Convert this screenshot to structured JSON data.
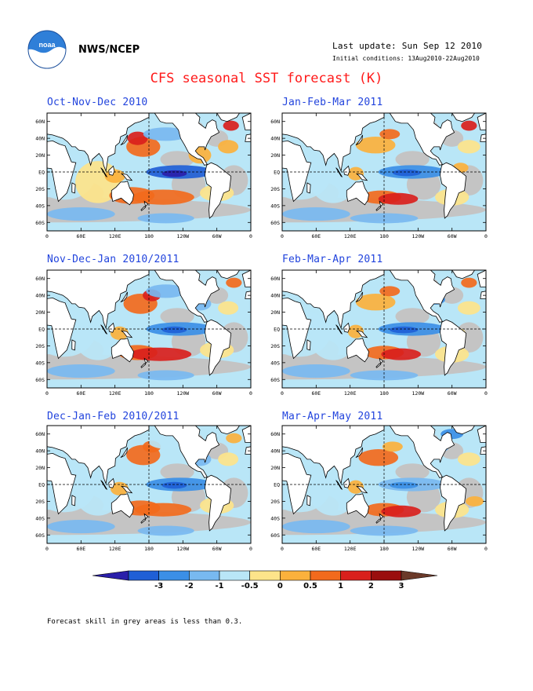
{
  "header": {
    "org": "NWS/NCEP",
    "last_update": "Last update: Sun Sep 12 2010",
    "initial_conditions": "Initial conditions: 13Aug2010-22Aug2010",
    "title": "CFS seasonal SST forecast (K)",
    "logo_text": "noaa"
  },
  "panels": [
    {
      "title": "Oct-Nov-Dec 2010"
    },
    {
      "title": "Jan-Feb-Mar 2011"
    },
    {
      "title": "Nov-Dec-Jan 2010/2011"
    },
    {
      "title": "Feb-Mar-Apr 2011"
    },
    {
      "title": "Dec-Jan-Feb 2010/2011"
    },
    {
      "title": "Mar-Apr-May 2011"
    }
  ],
  "axes": {
    "lat_labels": [
      "60N",
      "40N",
      "20N",
      "EQ",
      "20S",
      "40S",
      "60S"
    ],
    "lon_labels": [
      "0",
      "60E",
      "120E",
      "180",
      "120W",
      "60W",
      "0"
    ]
  },
  "colorbar": {
    "labels": [
      "-3",
      "-2",
      "-1",
      "-0.5",
      "0",
      "0.5",
      "1",
      "2",
      "3"
    ],
    "colors": [
      "#2a1faa",
      "#1f5fd6",
      "#3b8fe6",
      "#78b9f0",
      "#b9e6f7",
      "#fde48a",
      "#fbb13c",
      "#f26a1c",
      "#d9201c",
      "#9a0e0e",
      "#6b3a2a"
    ]
  },
  "colors": {
    "land": "#ffffff",
    "low_skill": "#c4c4c4",
    "title_red": "#ff1a1a",
    "panel_title_blue": "#2244dd"
  },
  "note": "Forecast skill in grey areas is less than 0.3."
}
